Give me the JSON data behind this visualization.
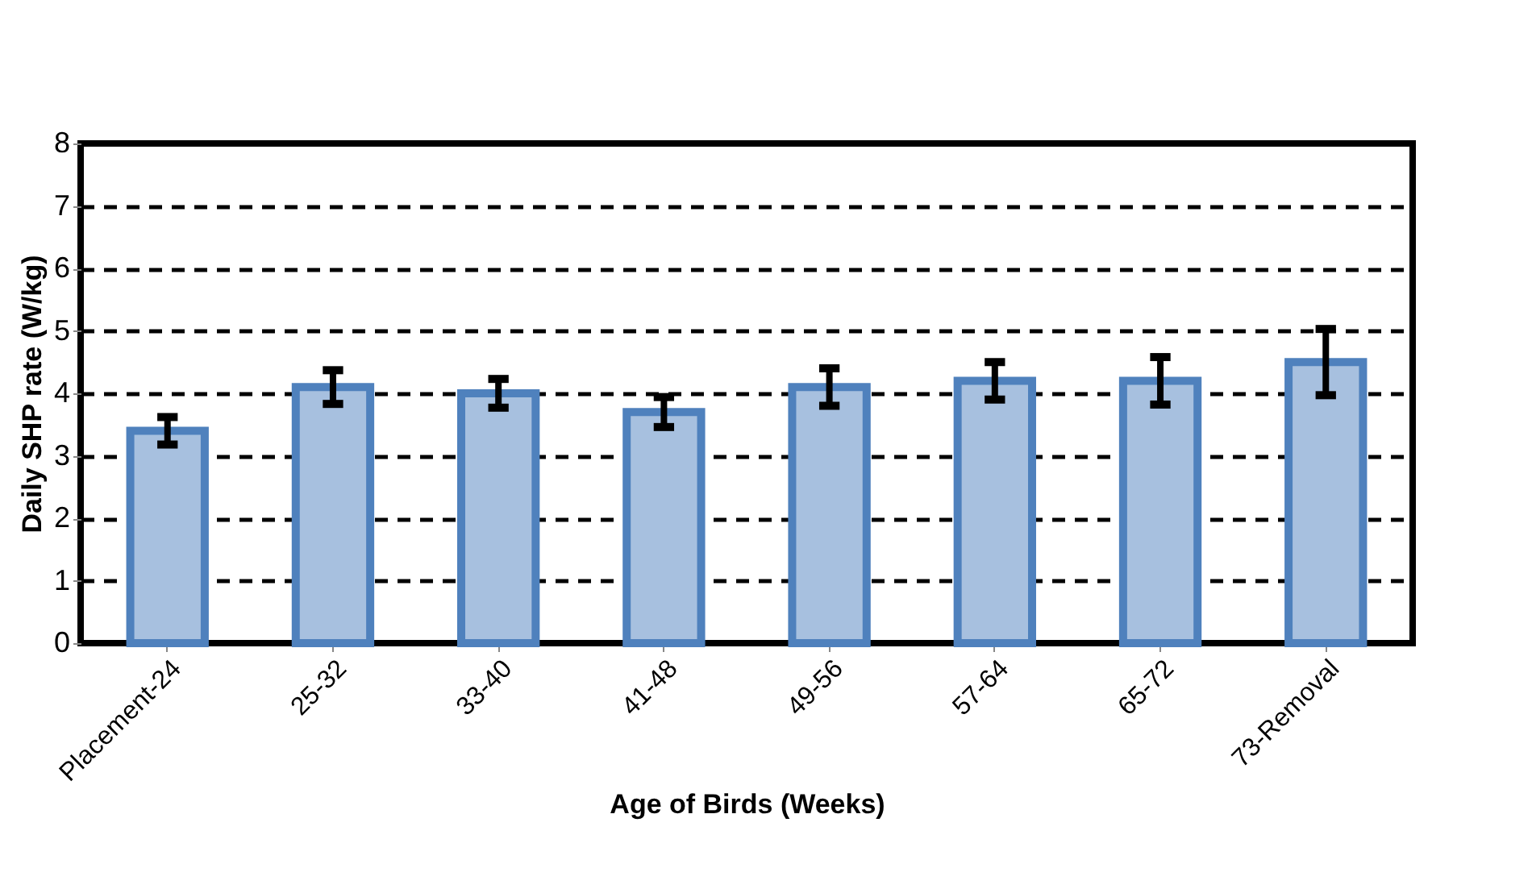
{
  "chart_data": {
    "type": "bar",
    "xlabel": "Age of Birds (Weeks)",
    "ylabel": "Daily SHP rate (W/kg)",
    "categories": [
      "Placement-24",
      "25-32",
      "33-40",
      "41-48",
      "49-56",
      "57-64",
      "65-72",
      "73-Removal"
    ],
    "series": [
      {
        "color": "#a7c0df",
        "values": [
          3.4,
          4.1,
          4.0,
          3.7,
          4.1,
          4.2,
          4.2,
          4.5
        ],
        "errors": [
          0.22,
          0.27,
          0.23,
          0.24,
          0.3,
          0.3,
          0.38,
          0.53
        ]
      }
    ],
    "ylim": [
      0,
      8
    ],
    "yticks": [
      0,
      1,
      2,
      3,
      4,
      5,
      6,
      7,
      8
    ],
    "grid": "y",
    "legend": false
  }
}
